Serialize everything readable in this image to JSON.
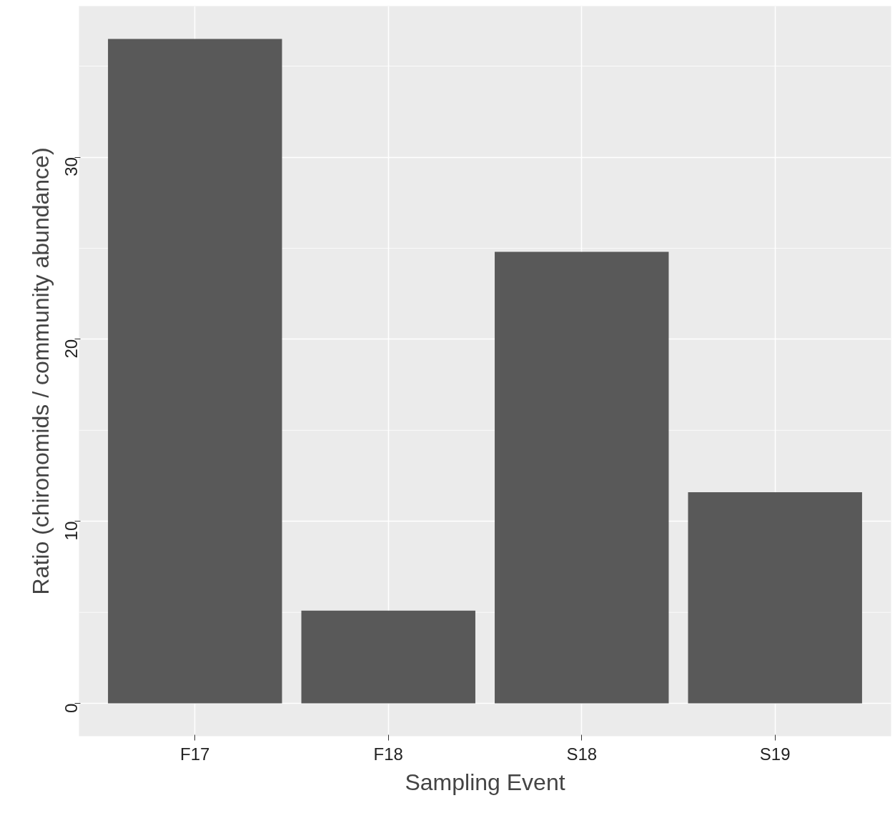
{
  "chart_data": {
    "type": "bar",
    "xlabel": "Sampling Event",
    "ylabel": "Ratio (chironomids / community abundance)",
    "categories": [
      "F17",
      "F18",
      "S18",
      "S19"
    ],
    "values": [
      36.5,
      5.1,
      24.8,
      11.6
    ],
    "color": "#595959",
    "ylim": [
      -1.8,
      38.3
    ],
    "yticks": [
      0,
      10,
      20,
      30
    ],
    "grid": true
  }
}
